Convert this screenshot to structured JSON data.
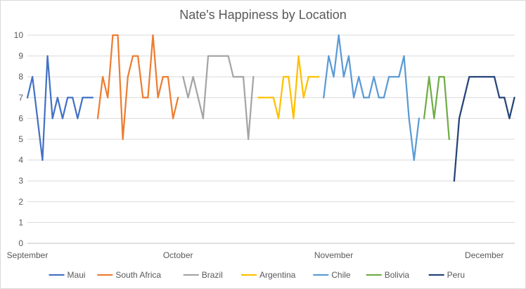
{
  "chart_data": {
    "type": "line",
    "title": "Nate's Happiness by Location",
    "xlabel": "",
    "ylabel": "",
    "ylim": [
      0,
      10
    ],
    "yticks": [
      0,
      1,
      2,
      3,
      4,
      5,
      6,
      7,
      8,
      9,
      10
    ],
    "xlim": [
      "2016-09-01",
      "2016-12-07"
    ],
    "xticks": [
      {
        "date": "2016-09-01",
        "label": "September"
      },
      {
        "date": "2016-10-01",
        "label": "October"
      },
      {
        "date": "2016-11-01",
        "label": "November"
      },
      {
        "date": "2016-12-01",
        "label": "December"
      }
    ],
    "grid": "horizontal",
    "legend": "bottom",
    "series": [
      {
        "name": "Maui",
        "color": "#4472c4",
        "points": [
          [
            "2016-09-01",
            7
          ],
          [
            "2016-09-02",
            8
          ],
          [
            "2016-09-03",
            6
          ],
          [
            "2016-09-04",
            4
          ],
          [
            "2016-09-05",
            9
          ],
          [
            "2016-09-06",
            6
          ],
          [
            "2016-09-07",
            7
          ],
          [
            "2016-09-08",
            6
          ],
          [
            "2016-09-09",
            7
          ],
          [
            "2016-09-10",
            7
          ],
          [
            "2016-09-11",
            6
          ],
          [
            "2016-09-12",
            7
          ],
          [
            "2016-09-13",
            7
          ],
          [
            "2016-09-14",
            7
          ]
        ]
      },
      {
        "name": "South Africa",
        "color": "#ed7d31",
        "points": [
          [
            "2016-09-15",
            6
          ],
          [
            "2016-09-16",
            8
          ],
          [
            "2016-09-17",
            7
          ],
          [
            "2016-09-18",
            10
          ],
          [
            "2016-09-19",
            10
          ],
          [
            "2016-09-20",
            5
          ],
          [
            "2016-09-21",
            8
          ],
          [
            "2016-09-22",
            9
          ],
          [
            "2016-09-23",
            9
          ],
          [
            "2016-09-24",
            7
          ],
          [
            "2016-09-25",
            7
          ],
          [
            "2016-09-26",
            10
          ],
          [
            "2016-09-27",
            7
          ],
          [
            "2016-09-28",
            8
          ],
          [
            "2016-09-29",
            8
          ],
          [
            "2016-09-30",
            6
          ],
          [
            "2016-10-01",
            7
          ]
        ]
      },
      {
        "name": "Brazil",
        "color": "#a5a5a5",
        "points": [
          [
            "2016-10-02",
            8
          ],
          [
            "2016-10-03",
            7
          ],
          [
            "2016-10-04",
            8
          ],
          [
            "2016-10-05",
            7
          ],
          [
            "2016-10-06",
            6
          ],
          [
            "2016-10-07",
            9
          ],
          [
            "2016-10-08",
            9
          ],
          [
            "2016-10-09",
            9
          ],
          [
            "2016-10-10",
            9
          ],
          [
            "2016-10-11",
            9
          ],
          [
            "2016-10-12",
            8
          ],
          [
            "2016-10-13",
            8
          ],
          [
            "2016-10-14",
            8
          ],
          [
            "2016-10-15",
            5
          ],
          [
            "2016-10-16",
            8
          ]
        ]
      },
      {
        "name": "Argentina",
        "color": "#ffc000",
        "points": [
          [
            "2016-10-17",
            7
          ],
          [
            "2016-10-18",
            7
          ],
          [
            "2016-10-19",
            7
          ],
          [
            "2016-10-20",
            7
          ],
          [
            "2016-10-21",
            6
          ],
          [
            "2016-10-22",
            8
          ],
          [
            "2016-10-23",
            8
          ],
          [
            "2016-10-24",
            6
          ],
          [
            "2016-10-25",
            9
          ],
          [
            "2016-10-26",
            7
          ],
          [
            "2016-10-27",
            8
          ],
          [
            "2016-10-28",
            8
          ],
          [
            "2016-10-29",
            8
          ]
        ]
      },
      {
        "name": "Chile",
        "color": "#5b9bd5",
        "points": [
          [
            "2016-10-30",
            7
          ],
          [
            "2016-10-31",
            9
          ],
          [
            "2016-11-01",
            8
          ],
          [
            "2016-11-02",
            10
          ],
          [
            "2016-11-03",
            8
          ],
          [
            "2016-11-04",
            9
          ],
          [
            "2016-11-05",
            7
          ],
          [
            "2016-11-06",
            8
          ],
          [
            "2016-11-07",
            7
          ],
          [
            "2016-11-08",
            7
          ],
          [
            "2016-11-09",
            8
          ],
          [
            "2016-11-10",
            7
          ],
          [
            "2016-11-11",
            7
          ],
          [
            "2016-11-12",
            8
          ],
          [
            "2016-11-13",
            8
          ],
          [
            "2016-11-14",
            8
          ],
          [
            "2016-11-15",
            9
          ],
          [
            "2016-11-16",
            6
          ],
          [
            "2016-11-17",
            4
          ],
          [
            "2016-11-18",
            6
          ]
        ]
      },
      {
        "name": "Bolivia",
        "color": "#70ad47",
        "points": [
          [
            "2016-11-19",
            6
          ],
          [
            "2016-11-20",
            8
          ],
          [
            "2016-11-21",
            6
          ],
          [
            "2016-11-22",
            8
          ],
          [
            "2016-11-23",
            8
          ],
          [
            "2016-11-24",
            5
          ]
        ]
      },
      {
        "name": "Peru",
        "color": "#264478",
        "points": [
          [
            "2016-11-25",
            3
          ],
          [
            "2016-11-26",
            6
          ],
          [
            "2016-11-27",
            7
          ],
          [
            "2016-11-28",
            8
          ],
          [
            "2016-11-29",
            8
          ],
          [
            "2016-11-30",
            8
          ],
          [
            "2016-12-01",
            8
          ],
          [
            "2016-12-02",
            8
          ],
          [
            "2016-12-03",
            8
          ],
          [
            "2016-12-04",
            7
          ],
          [
            "2016-12-05",
            7
          ],
          [
            "2016-12-06",
            6
          ],
          [
            "2016-12-07",
            7
          ]
        ]
      }
    ]
  }
}
